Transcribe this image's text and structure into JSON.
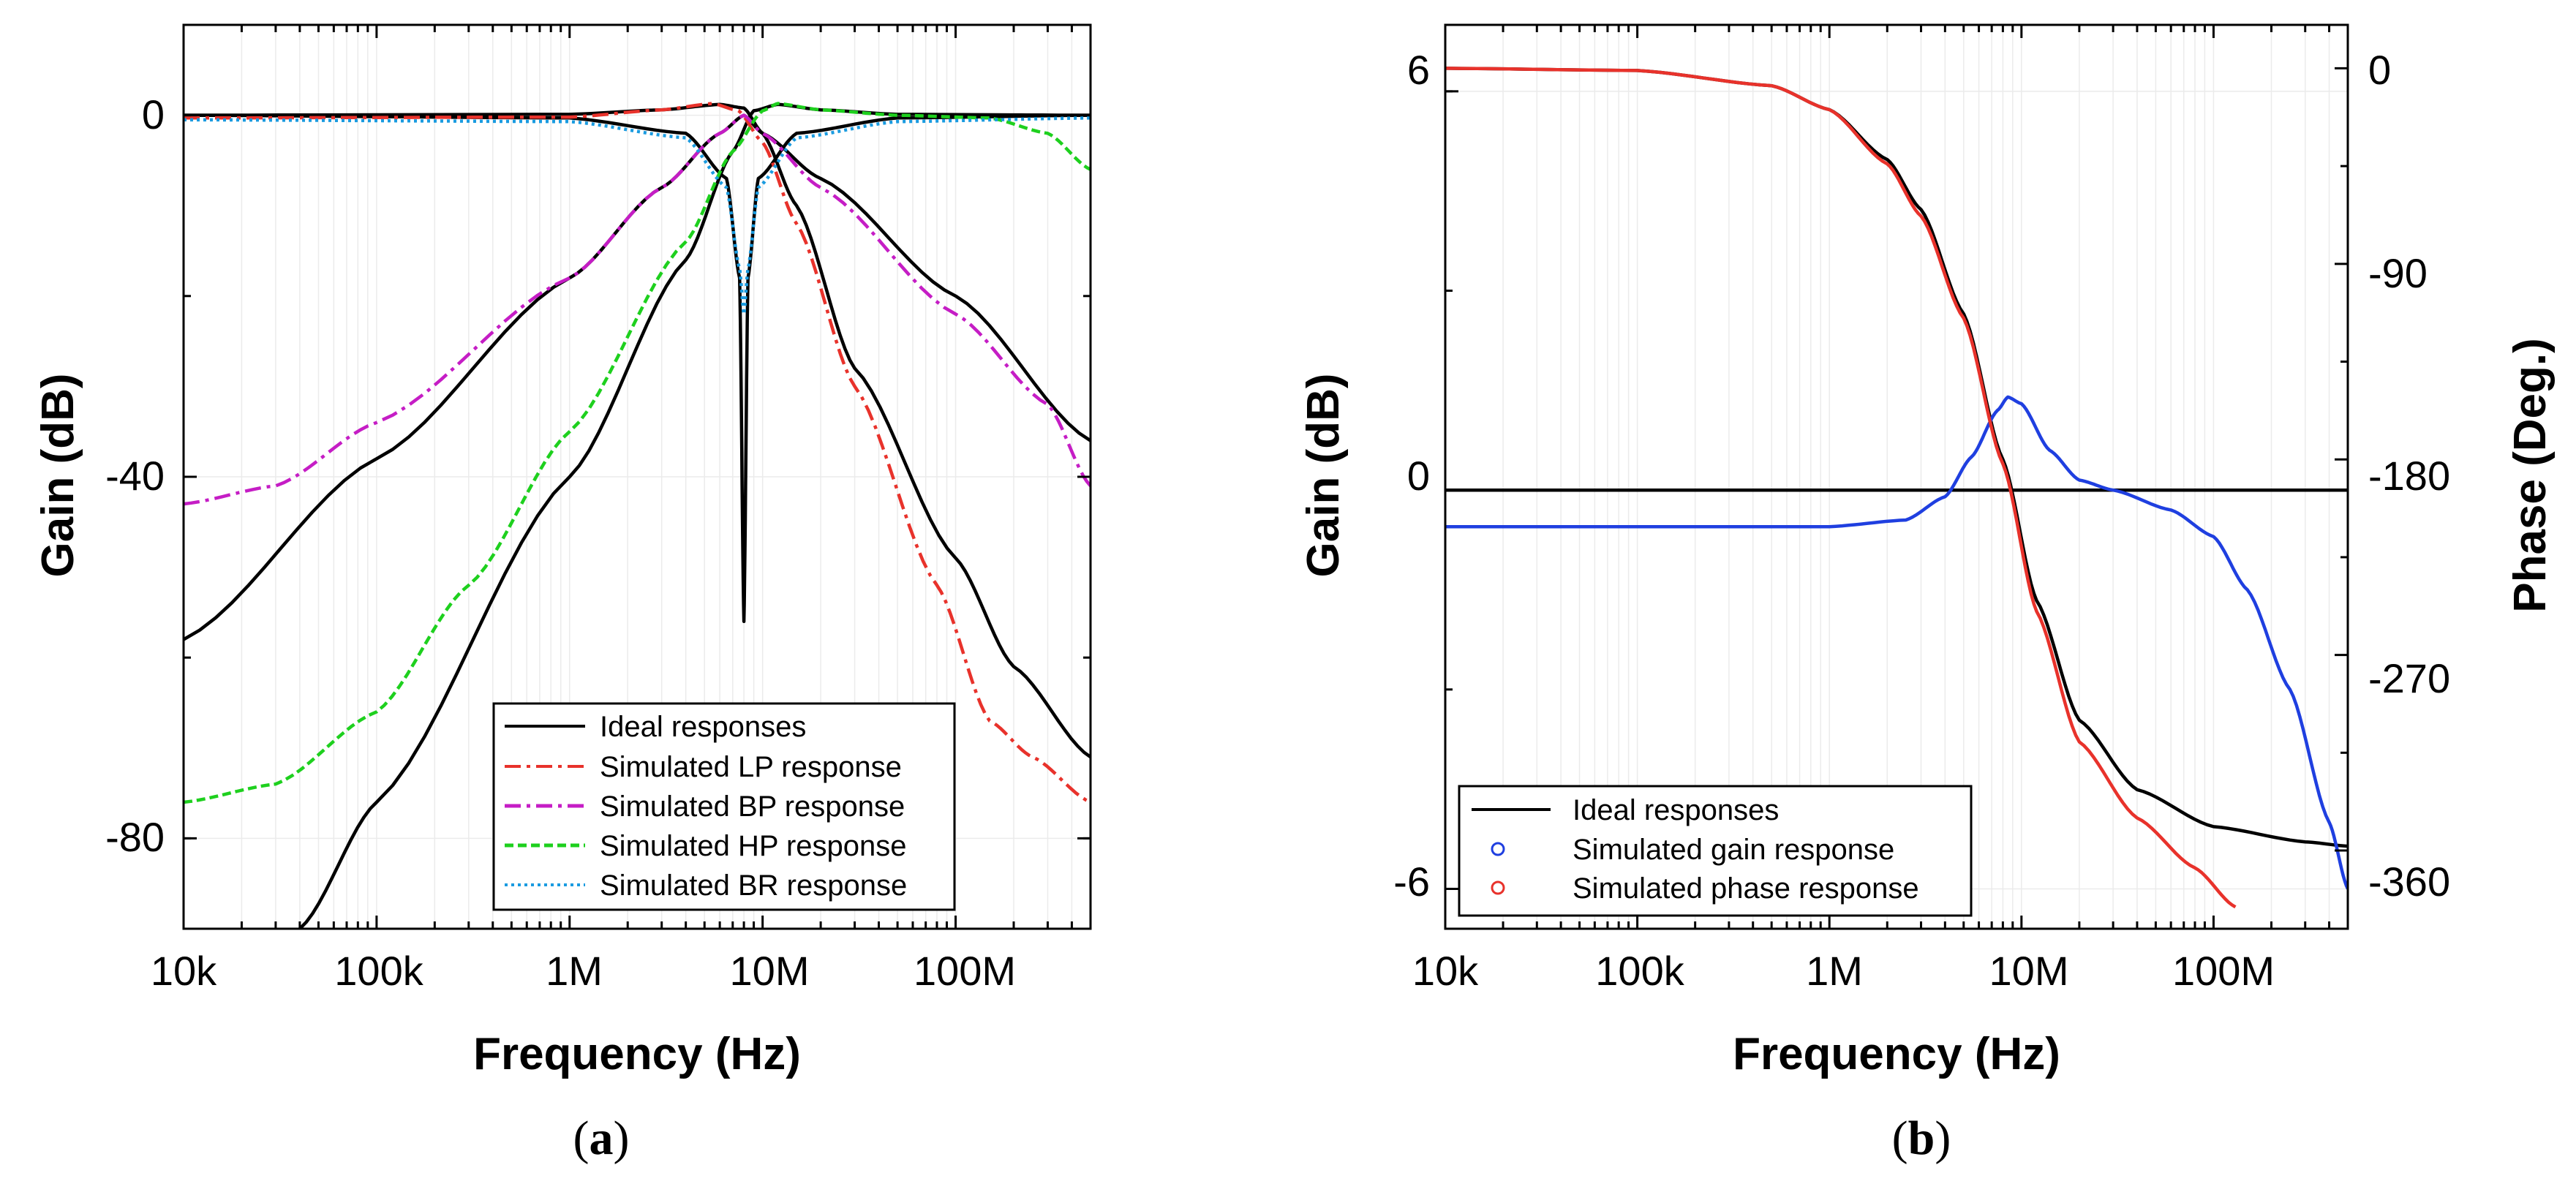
{
  "chart_data": [
    {
      "type": "line",
      "panel_label_letter": "a",
      "xscale": "log",
      "xlim": [
        10000,
        500000000
      ],
      "ylim": [
        -90,
        10
      ],
      "xticks": [
        10000,
        100000,
        1000000,
        10000000,
        100000000
      ],
      "xtick_labels": [
        "10k",
        "100k",
        "1M",
        "10M",
        "100M"
      ],
      "yticks": [
        0,
        -40,
        -80
      ],
      "ytick_labels": [
        "0",
        "-40",
        "-80"
      ],
      "xlabel": "Frequency (Hz)",
      "ylabel": "Gain (dB)",
      "legend": [
        {
          "label": "Ideal responses",
          "color": "#000000",
          "dash": "solid"
        },
        {
          "label": "Simulated LP response",
          "color": "#e8322b",
          "dash": "dashdot"
        },
        {
          "label": "Simulated BP response",
          "color": "#c51dc5",
          "dash": "dashdot"
        },
        {
          "label": "Simulated HP response",
          "color": "#1ed01e",
          "dash": "dashed"
        },
        {
          "label": "Simulated BR response",
          "color": "#1a9be0",
          "dash": "dotted"
        }
      ],
      "series": [
        {
          "name": "Ideal LP",
          "color": "#000000",
          "dash": "solid",
          "points": [
            [
              10000,
              0
            ],
            [
              1000000,
              0.1
            ],
            [
              3000000,
              0.6
            ],
            [
              6000000,
              1.2
            ],
            [
              8000000,
              0.8
            ],
            [
              10000000,
              -2
            ],
            [
              15000000,
              -10
            ],
            [
              30000000,
              -28
            ],
            [
              100000000,
              -49
            ],
            [
              200000000,
              -61
            ],
            [
              500000000,
              -71
            ]
          ]
        },
        {
          "name": "Ideal BP",
          "color": "#000000",
          "dash": "solid",
          "points": [
            [
              10000,
              -58
            ],
            [
              100000,
              -38
            ],
            [
              1000000,
              -18
            ],
            [
              3000000,
              -8
            ],
            [
              6000000,
              -2
            ],
            [
              8000000,
              0
            ],
            [
              10000000,
              -2
            ],
            [
              20000000,
              -7
            ],
            [
              100000000,
              -20
            ],
            [
              500000000,
              -36
            ]
          ]
        },
        {
          "name": "Ideal HP",
          "color": "#000000",
          "dash": "solid",
          "points": [
            [
              40000,
              -90
            ],
            [
              100000,
              -76
            ],
            [
              1000000,
              -40
            ],
            [
              4000000,
              -16
            ],
            [
              7000000,
              -4
            ],
            [
              9000000,
              0.5
            ],
            [
              12000000,
              1.2
            ],
            [
              20000000,
              0.6
            ],
            [
              50000000,
              0.1
            ],
            [
              500000000,
              0
            ]
          ]
        },
        {
          "name": "Ideal BR",
          "color": "#000000",
          "dash": "solid",
          "points": [
            [
              10000,
              0
            ],
            [
              1000000,
              -0.3
            ],
            [
              4000000,
              -2
            ],
            [
              6500000,
              -7
            ],
            [
              7600000,
              -18
            ],
            [
              8000000,
              -56
            ],
            [
              8400000,
              -18
            ],
            [
              9500000,
              -7
            ],
            [
              15000000,
              -2
            ],
            [
              50000000,
              -0.3
            ],
            [
              500000000,
              0
            ]
          ]
        },
        {
          "name": "Simulated LP",
          "color": "#e8322b",
          "dash": "dashdot",
          "points": [
            [
              10000,
              -0.3
            ],
            [
              1000000,
              -0.2
            ],
            [
              3000000,
              0.6
            ],
            [
              5500000,
              1.3
            ],
            [
              7500000,
              0.5
            ],
            [
              10000000,
              -3
            ],
            [
              15000000,
              -12
            ],
            [
              30000000,
              -30
            ],
            [
              80000000,
              -52
            ],
            [
              150000000,
              -67
            ],
            [
              250000000,
              -71
            ],
            [
              500000000,
              -76
            ]
          ]
        },
        {
          "name": "Simulated BP",
          "color": "#c51dc5",
          "dash": "dashdot",
          "points": [
            [
              10000,
              -43
            ],
            [
              30000,
              -41
            ],
            [
              100000,
              -34
            ],
            [
              1000000,
              -18
            ],
            [
              3000000,
              -8
            ],
            [
              6000000,
              -2
            ],
            [
              8000000,
              0
            ],
            [
              10000000,
              -2
            ],
            [
              20000000,
              -8
            ],
            [
              100000000,
              -22
            ],
            [
              300000000,
              -32
            ],
            [
              500000000,
              -41
            ]
          ]
        },
        {
          "name": "Simulated HP",
          "color": "#1ed01e",
          "dash": "dashed",
          "points": [
            [
              10000,
              -76
            ],
            [
              30000,
              -74
            ],
            [
              100000,
              -66
            ],
            [
              300000,
              -52
            ],
            [
              1000000,
              -35
            ],
            [
              4000000,
              -14
            ],
            [
              7000000,
              -4
            ],
            [
              10000000,
              0.5
            ],
            [
              12000000,
              1.3
            ],
            [
              20000000,
              0.6
            ],
            [
              50000000,
              0
            ],
            [
              150000000,
              -0.3
            ],
            [
              300000000,
              -2
            ],
            [
              500000000,
              -6
            ]
          ]
        },
        {
          "name": "Simulated BR",
          "color": "#1a9be0",
          "dash": "dotted",
          "points": [
            [
              10000,
              -0.5
            ],
            [
              1000000,
              -0.7
            ],
            [
              4000000,
              -2.5
            ],
            [
              6500000,
              -8
            ],
            [
              7600000,
              -17
            ],
            [
              8000000,
              -22
            ],
            [
              8400000,
              -17
            ],
            [
              9500000,
              -8
            ],
            [
              15000000,
              -2.5
            ],
            [
              50000000,
              -0.7
            ],
            [
              500000000,
              -0.3
            ]
          ]
        }
      ]
    },
    {
      "type": "line",
      "panel_label_letter": "b",
      "xscale": "log",
      "xlim": [
        10000,
        500000000
      ],
      "ylim": [
        -6.6,
        7
      ],
      "y2lim": [
        -396,
        20
      ],
      "xticks": [
        10000,
        100000,
        1000000,
        10000000,
        100000000
      ],
      "xtick_labels": [
        "10k",
        "100k",
        "1M",
        "10M",
        "100M"
      ],
      "yticks": [
        6,
        0,
        -6
      ],
      "ytick_labels": [
        "6",
        "0",
        "-6"
      ],
      "y2ticks": [
        0,
        -90,
        -180,
        -270,
        -360
      ],
      "y2tick_labels": [
        "0",
        "-90",
        "-180",
        "-270",
        "-360"
      ],
      "xlabel": "Frequency (Hz)",
      "ylabel": "Gain (dB)",
      "y2label": "Phase (Deg.)",
      "legend": [
        {
          "label": "Ideal responses",
          "color": "#000000",
          "marker": "line"
        },
        {
          "label": "Simulated gain response",
          "color": "#1f3fe0",
          "marker": "circle"
        },
        {
          "label": "Simulated phase response",
          "color": "#e8322b",
          "marker": "circle"
        }
      ],
      "series": [
        {
          "name": "Ideal gain",
          "axis": "left",
          "color": "#000000",
          "points": [
            [
              10000,
              0
            ],
            [
              500000000,
              0
            ]
          ]
        },
        {
          "name": "Ideal phase",
          "axis": "right",
          "color": "#000000",
          "points": [
            [
              10000,
              0
            ],
            [
              100000,
              -1
            ],
            [
              500000,
              -8
            ],
            [
              1000000,
              -19
            ],
            [
              2000000,
              -42
            ],
            [
              3000000,
              -65
            ],
            [
              5000000,
              -113
            ],
            [
              8000000,
              -180
            ],
            [
              12000000,
              -245
            ],
            [
              20000000,
              -300
            ],
            [
              40000000,
              -332
            ],
            [
              100000000,
              -349
            ],
            [
              300000000,
              -356
            ],
            [
              500000000,
              -358
            ]
          ]
        },
        {
          "name": "Simulated gain",
          "axis": "left",
          "color": "#1f3fe0",
          "points": [
            [
              10000,
              -0.55
            ],
            [
              1000000,
              -0.55
            ],
            [
              2500000,
              -0.45
            ],
            [
              4000000,
              -0.1
            ],
            [
              5500000,
              0.5
            ],
            [
              7500000,
              1.2
            ],
            [
              8500000,
              1.4
            ],
            [
              10000000,
              1.3
            ],
            [
              14000000,
              0.6
            ],
            [
              20000000,
              0.15
            ],
            [
              30000000,
              0
            ],
            [
              60000000,
              -0.3
            ],
            [
              100000000,
              -0.7
            ],
            [
              150000000,
              -1.5
            ],
            [
              250000000,
              -3
            ],
            [
              400000000,
              -5
            ],
            [
              500000000,
              -6
            ]
          ]
        },
        {
          "name": "Simulated phase",
          "axis": "right",
          "color": "#e8322b",
          "points": [
            [
              10000,
              0
            ],
            [
              100000,
              -1
            ],
            [
              500000,
              -8
            ],
            [
              1000000,
              -19
            ],
            [
              2000000,
              -44
            ],
            [
              3000000,
              -68
            ],
            [
              5000000,
              -115
            ],
            [
              8000000,
              -182
            ],
            [
              12000000,
              -250
            ],
            [
              20000000,
              -310
            ],
            [
              40000000,
              -345
            ],
            [
              80000000,
              -368
            ],
            [
              130000000,
              -386
            ]
          ]
        }
      ]
    }
  ]
}
